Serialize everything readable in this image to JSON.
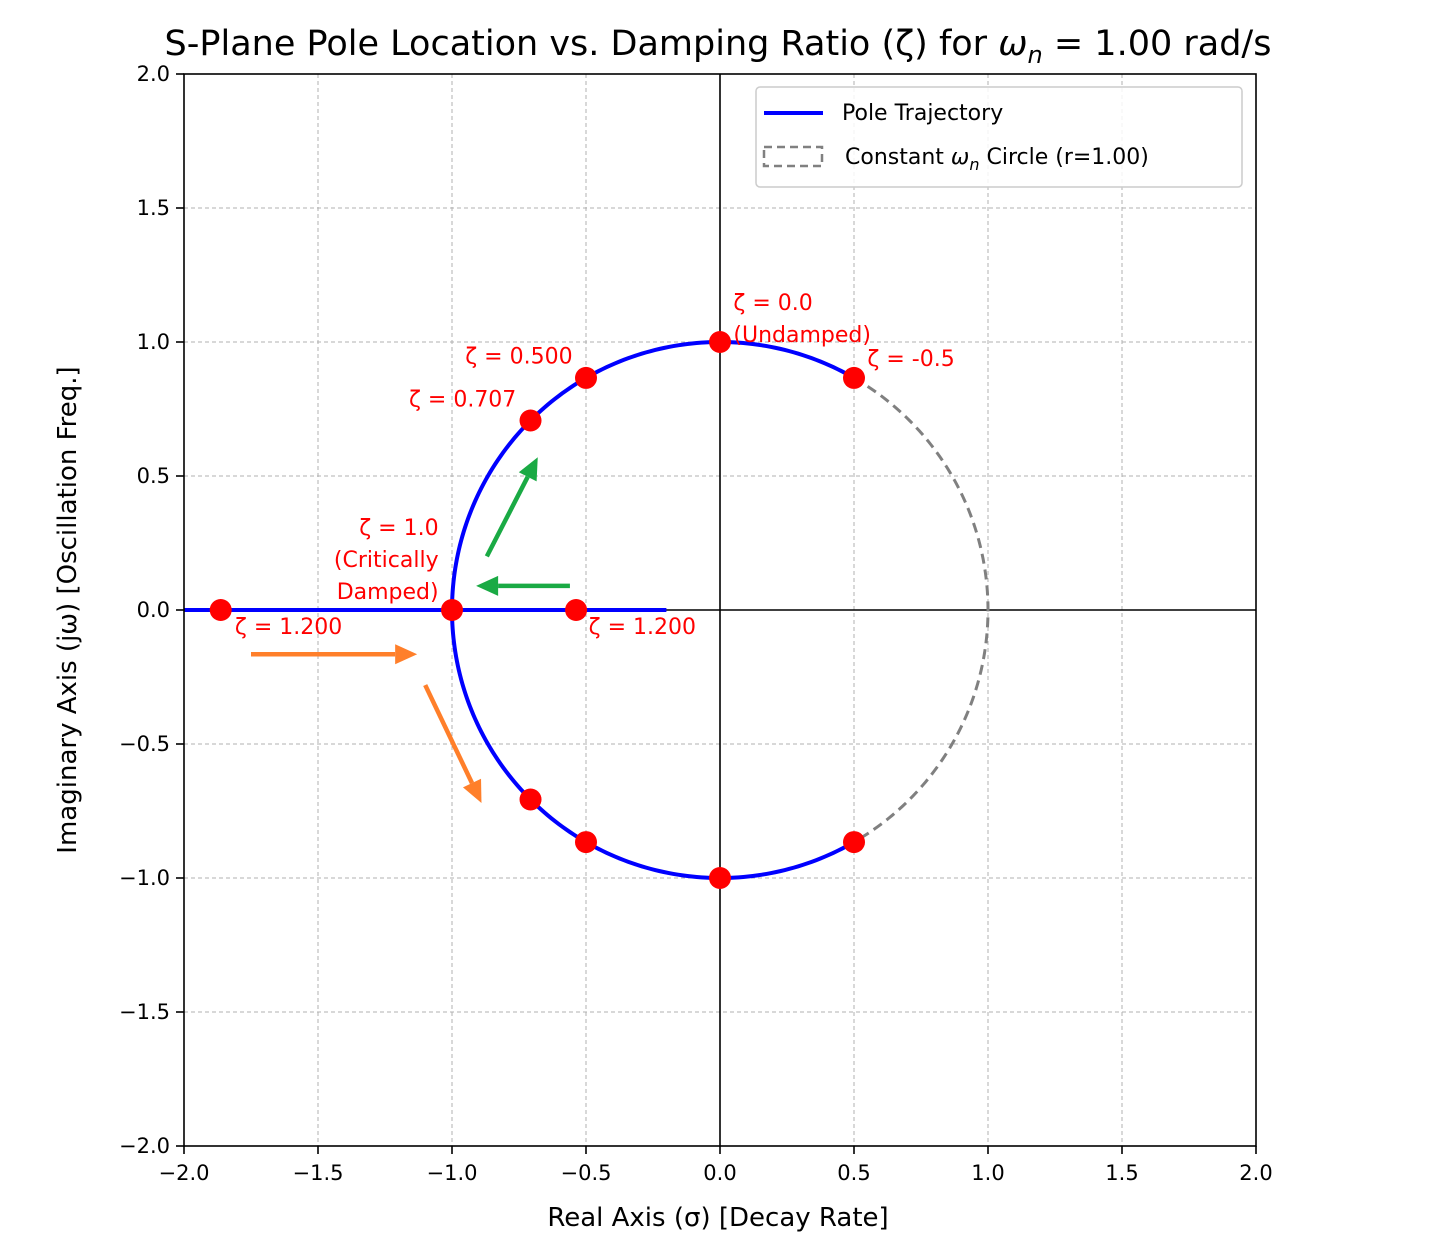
{
  "chart_data": {
    "type": "scatter",
    "title": "S-Plane Pole Location vs. Damping Ratio (ζ) for ",
    "title_omega": "ω",
    "title_sub": "n",
    "title_tail": " = 1.00 rad/s",
    "xlabel": "Real Axis (σ) [Decay Rate]",
    "ylabel": "Imaginary Axis (jω) [Oscillation Freq.]",
    "xlim": [
      -2.0,
      2.0
    ],
    "ylim": [
      -2.0,
      2.0
    ],
    "xticks": [
      -2.0,
      -1.5,
      -1.0,
      -0.5,
      0.0,
      0.5,
      1.0,
      1.5,
      2.0
    ],
    "yticks": [
      -2.0,
      -1.5,
      -1.0,
      -0.5,
      0.0,
      0.5,
      1.0,
      1.5,
      2.0
    ],
    "xtick_labels": [
      "−2.0",
      "−1.5",
      "−1.0",
      "−0.5",
      "0.0",
      "0.5",
      "1.0",
      "1.5",
      "2.0"
    ],
    "ytick_labels": [
      "−2.0",
      "−1.5",
      "−1.0",
      "−0.5",
      "0.0",
      "0.5",
      "1.0",
      "1.5",
      "2.0"
    ],
    "grid": true,
    "omega_n": 1.0,
    "trajectory": {
      "name": "Pole Trajectory",
      "color": "#0000ff",
      "arc_start_deg": -60,
      "arc_end_deg": 60,
      "real_axis_segment": [
        -2.0,
        -0.2
      ]
    },
    "circle": {
      "name": "Constant ",
      "name_omega": "ω",
      "name_sub": "n",
      "name_tail": " Circle (r=1.00)",
      "radius": 1.0,
      "color": "#808080"
    },
    "poles": {
      "color": "#ff0000",
      "points": [
        {
          "x": 0.0,
          "y": 1.0
        },
        {
          "x": 0.0,
          "y": -1.0
        },
        {
          "x": -0.5,
          "y": 0.866
        },
        {
          "x": -0.5,
          "y": -0.866
        },
        {
          "x": -0.707,
          "y": 0.707
        },
        {
          "x": -0.707,
          "y": -0.707
        },
        {
          "x": -1.0,
          "y": 0.0
        },
        {
          "x": -1.863,
          "y": 0.0
        },
        {
          "x": -0.537,
          "y": 0.0
        },
        {
          "x": 0.5,
          "y": 0.866
        },
        {
          "x": 0.5,
          "y": -0.866
        }
      ]
    },
    "annotations": [
      {
        "lines": [
          "ζ = 0.0",
          "(Undamped)"
        ],
        "x": 0.05,
        "y": 1.12,
        "anchor": "start"
      },
      {
        "lines": [
          "ζ = 0.500"
        ],
        "x": -0.55,
        "y": 0.92,
        "anchor": "end"
      },
      {
        "lines": [
          "ζ = 0.707"
        ],
        "x": -0.76,
        "y": 0.76,
        "anchor": "end"
      },
      {
        "lines": [
          "ζ = -0.5"
        ],
        "x": 0.55,
        "y": 0.91,
        "anchor": "start"
      },
      {
        "lines": [
          "ζ = 1.0",
          "(Critically",
          "Damped)"
        ],
        "x": -1.05,
        "y": 0.28,
        "anchor": "end"
      },
      {
        "lines": [
          "ζ = 1.200"
        ],
        "x": -1.81,
        "y": -0.09,
        "anchor": "start"
      },
      {
        "lines": [
          "ζ = 1.200"
        ],
        "x": -0.49,
        "y": -0.09,
        "anchor": "start"
      }
    ],
    "arrows": [
      {
        "from": [
          -0.87,
          0.2
        ],
        "to": [
          -0.68,
          0.57
        ],
        "color": "#1aaa44"
      },
      {
        "from": [
          -0.56,
          0.09
        ],
        "to": [
          -0.91,
          0.09
        ],
        "color": "#1aaa44"
      },
      {
        "from": [
          -1.75,
          -0.165
        ],
        "to": [
          -1.13,
          -0.165
        ],
        "color": "#ff7f2a"
      },
      {
        "from": [
          -1.1,
          -0.28
        ],
        "to": [
          -0.89,
          -0.72
        ],
        "color": "#ff7f2a"
      }
    ],
    "legend_position": "top-right"
  }
}
